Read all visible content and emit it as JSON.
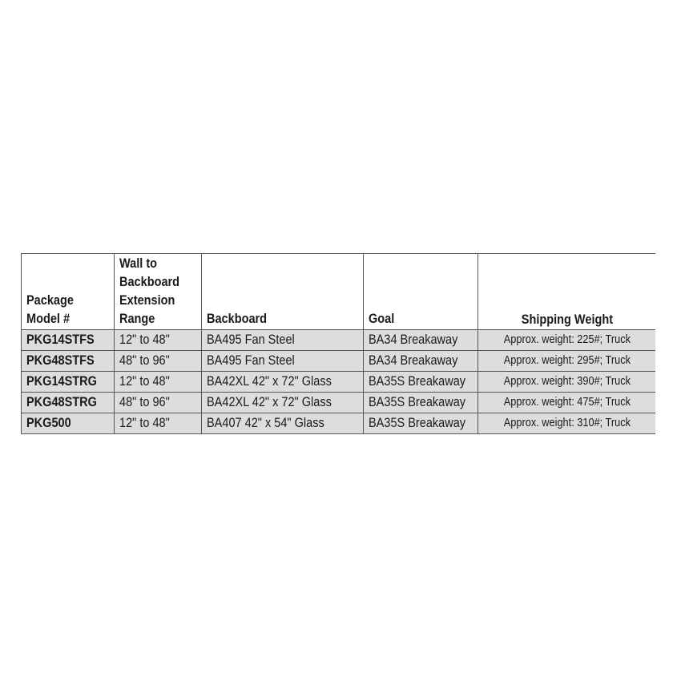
{
  "table": {
    "headers": [
      {
        "key": "model",
        "lines": [
          "Package",
          "Model #"
        ]
      },
      {
        "key": "range",
        "lines": [
          "Wall to",
          "Backboard",
          "Extension",
          "Range"
        ]
      },
      {
        "key": "backboard",
        "lines": [
          "Backboard"
        ]
      },
      {
        "key": "goal",
        "lines": [
          "Goal"
        ]
      },
      {
        "key": "ship",
        "lines": [
          "Shipping Weight"
        ]
      }
    ],
    "rows": [
      [
        "PKG14STFS",
        "12\" to 48\"",
        "BA495 Fan Steel",
        "BA34 Breakaway",
        "Approx. weight: 225#; Truck"
      ],
      [
        "PKG48STFS",
        "48\" to 96\"",
        "BA495 Fan Steel",
        "BA34 Breakaway",
        "Approx. weight: 295#; Truck"
      ],
      [
        "PKG14STRG",
        "12\" to 48\"",
        "BA42XL 42\" x 72\" Glass",
        "BA35S Breakaway",
        "Approx. weight: 390#; Truck"
      ],
      [
        "PKG48STRG",
        "48\" to 96\"",
        "BA42XL 42\" x 72\" Glass",
        "BA35S Breakaway",
        "Approx. weight: 475#; Truck"
      ],
      [
        "PKG500",
        "12\" to 48\"",
        "BA407 42\" x 54\" Glass",
        "BA35S Breakaway",
        "Approx. weight: 310#; Truck"
      ]
    ]
  },
  "colors": {
    "row_background": "#dddddd",
    "border": "#555555"
  }
}
